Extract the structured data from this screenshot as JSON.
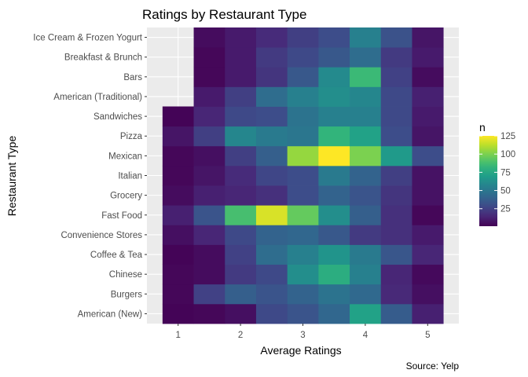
{
  "chart_data": {
    "type": "heatmap",
    "title": "Ratings by Restaurant Type",
    "xlabel": "Average Ratings",
    "ylabel": "Restaurant Type",
    "caption": "Source: Yelp",
    "legend_title": "n",
    "legend_position": "right",
    "x_ticks": [
      1,
      2,
      3,
      4,
      5
    ],
    "xlim": [
      0.5,
      5.5
    ],
    "x_centers": [
      1.0,
      1.5,
      2.0,
      2.5,
      3.0,
      3.5,
      4.0,
      4.5,
      5.0
    ],
    "categories": [
      "American (New)",
      "Burgers",
      "Chinese",
      "Coffee & Tea",
      "Convenience Stores",
      "Fast Food",
      "Grocery",
      "Italian",
      "Mexican",
      "Pizza",
      "Sandwiches",
      "American (Traditional)",
      "Bars",
      "Breakfast & Brunch",
      "Ice Cream & Frozen Yogurt"
    ],
    "values": [
      [
        2,
        3,
        6,
        28,
        33,
        42,
        72,
        37,
        12
      ],
      [
        3,
        25,
        38,
        33,
        40,
        48,
        43,
        15,
        6
      ],
      [
        3,
        5,
        22,
        28,
        62,
        78,
        55,
        14,
        4
      ],
      [
        2,
        5,
        25,
        45,
        55,
        65,
        52,
        34,
        14
      ],
      [
        6,
        14,
        28,
        40,
        42,
        35,
        22,
        18,
        10
      ],
      [
        12,
        33,
        88,
        118,
        95,
        62,
        38,
        18,
        3
      ],
      [
        5,
        12,
        14,
        18,
        30,
        40,
        33,
        20,
        7
      ],
      [
        3,
        8,
        16,
        27,
        30,
        52,
        40,
        24,
        7
      ],
      [
        3,
        6,
        24,
        38,
        105,
        125,
        100,
        68,
        30
      ],
      [
        8,
        24,
        58,
        52,
        50,
        82,
        72,
        30,
        8
      ],
      [
        2,
        14,
        28,
        30,
        48,
        55,
        55,
        28,
        10
      ],
      [
        null,
        10,
        24,
        45,
        55,
        62,
        58,
        28,
        12
      ],
      [
        null,
        3,
        10,
        20,
        35,
        60,
        85,
        25,
        5
      ],
      [
        null,
        3,
        10,
        22,
        28,
        35,
        45,
        22,
        10
      ],
      [
        null,
        5,
        10,
        16,
        24,
        30,
        55,
        32,
        8
      ]
    ],
    "color_scale": {
      "name": "viridis",
      "min": 1,
      "max": 125,
      "ticks": [
        25,
        50,
        75,
        100,
        125
      ]
    }
  }
}
